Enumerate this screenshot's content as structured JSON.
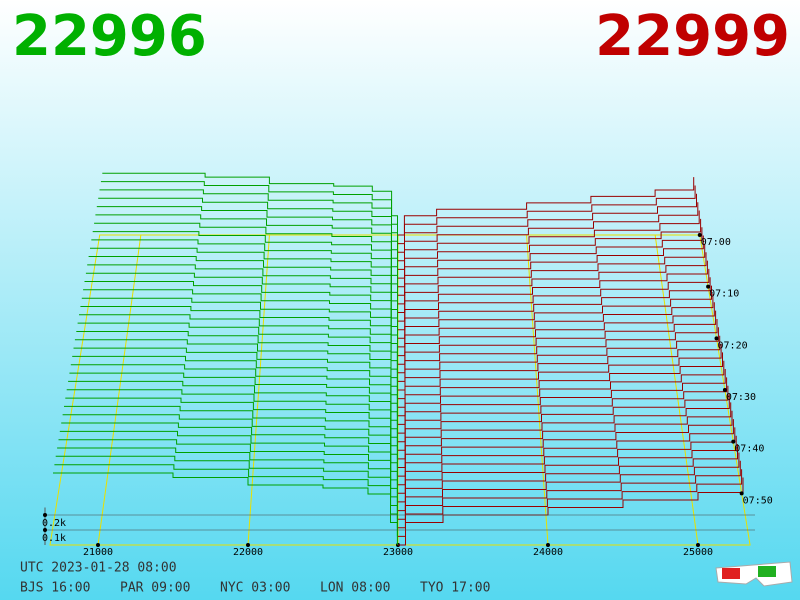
{
  "header": {
    "bid": "22996",
    "ask": "22999"
  },
  "chart_data": {
    "type": "depth3d",
    "bid": {
      "color": "#00a000",
      "prices": [
        20700,
        21500,
        22000,
        22500,
        22800,
        22950,
        22996
      ],
      "volumes": [
        480,
        450,
        400,
        380,
        340,
        150,
        0
      ]
    },
    "ask": {
      "color": "#990000",
      "prices": [
        22999,
        23050,
        23300,
        24000,
        24500,
        25000,
        25300
      ],
      "volumes": [
        0,
        150,
        200,
        250,
        300,
        350,
        450
      ]
    },
    "xlim": [
      20680,
      25347
    ],
    "xticks": [
      21000,
      22000,
      23000,
      24000,
      25000
    ],
    "ylim": [
      0,
      250
    ],
    "yticks": [
      {
        "value": 100,
        "label": "0.1k"
      },
      {
        "value": 200,
        "label": "0.2k"
      }
    ],
    "times": [
      "07:00",
      "07:10",
      "07:20",
      "07:30",
      "07:40",
      "07:50"
    ]
  },
  "footer": {
    "utc": "UTC 2023-01-28 08:00",
    "clocks": [
      "BJS 16:00",
      "PAR 09:00",
      "NYC 03:00",
      "LON 08:00",
      "TYO 17:00"
    ]
  }
}
